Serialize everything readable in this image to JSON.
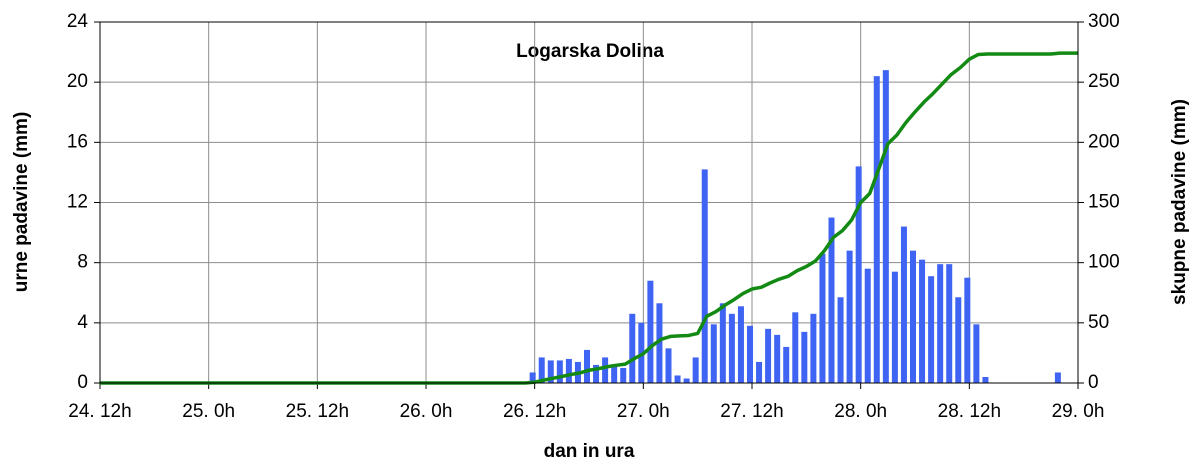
{
  "chart_data": {
    "type": "bar",
    "title": "Logarska Dolina",
    "xlabel": "dan in ura",
    "ylabel": "urne padavine (mm)",
    "y2label": "skupne padavine (mm)",
    "categories": [
      "24. 12h",
      null,
      null,
      null,
      null,
      null,
      null,
      null,
      null,
      null,
      null,
      null,
      "25. 0h",
      null,
      null,
      null,
      null,
      null,
      null,
      null,
      null,
      null,
      null,
      null,
      "25. 12h",
      null,
      null,
      null,
      null,
      null,
      null,
      null,
      null,
      null,
      null,
      null,
      "26. 0h",
      null,
      null,
      null,
      null,
      null,
      null,
      null,
      null,
      null,
      null,
      null,
      "26. 12h",
      null,
      null,
      null,
      null,
      null,
      null,
      null,
      null,
      null,
      null,
      null,
      "27. 0h",
      null,
      null,
      null,
      null,
      null,
      null,
      null,
      null,
      null,
      null,
      null,
      "27. 12h",
      null,
      null,
      null,
      null,
      null,
      null,
      null,
      null,
      null,
      null,
      null,
      "28. 0h",
      null,
      null,
      null,
      null,
      null,
      null,
      null,
      null,
      null,
      null,
      null,
      "28. 12h",
      null,
      null,
      null,
      null,
      null,
      null,
      null,
      null,
      null,
      null,
      null,
      "29. 0h"
    ],
    "series": [
      {
        "color": "#3f63f2",
        "values": [
          0,
          0,
          0,
          0,
          0,
          0,
          0,
          0,
          0,
          0,
          0,
          0,
          0,
          0,
          0,
          0,
          0,
          0,
          0,
          0,
          0,
          0,
          0,
          0,
          0,
          0,
          0,
          0,
          0,
          0,
          0,
          0,
          0,
          0,
          0,
          0,
          0,
          0,
          0,
          0,
          0,
          0,
          0,
          0,
          0,
          0,
          0,
          0,
          0.7,
          1.7,
          1.5,
          1.5,
          1.6,
          1.4,
          2.2,
          1.2,
          1.7,
          1.2,
          1.0,
          4.6,
          4.0,
          6.8,
          5.3,
          2.3,
          0.5,
          0.3,
          1.7,
          14.2,
          3.9,
          5.3,
          4.6,
          5.1,
          3.8,
          1.4,
          3.6,
          3.2,
          2.4,
          4.7,
          3.4,
          4.6,
          8.6,
          11.0,
          5.7,
          8.8,
          14.4,
          7.6,
          20.4,
          20.8,
          7.4,
          10.4,
          8.8,
          8.2,
          7.1,
          7.9,
          7.9,
          5.7,
          7.0,
          3.9,
          0.4,
          0,
          0,
          0,
          0,
          0,
          0,
          0,
          0.7,
          0,
          0
        ]
      },
      {
        "color": "#138a13",
        "type": "line",
        "axis": "y2",
        "values": [
          0,
          0,
          0,
          0,
          0,
          0,
          0,
          0,
          0,
          0,
          0,
          0,
          0,
          0,
          0,
          0,
          0,
          0,
          0,
          0,
          0,
          0,
          0,
          0,
          0,
          0,
          0,
          0,
          0,
          0,
          0,
          0,
          0,
          0,
          0,
          0,
          0,
          0,
          0,
          0,
          0,
          0,
          0,
          0,
          0,
          0,
          0,
          0,
          0.7,
          2.4,
          3.9,
          5.4,
          7.0,
          8.4,
          10.6,
          11.8,
          13.5,
          14.7,
          15.7,
          20.3,
          24.3,
          31.1,
          36.4,
          38.7,
          39.2,
          39.5,
          41.2,
          55.4,
          59.3,
          64.6,
          69.2,
          74.3,
          78.1,
          79.5,
          83.1,
          86.3,
          88.7,
          93.4,
          96.8,
          101.4,
          110.0,
          121.0,
          126.7,
          135.5,
          149.9,
          157.5,
          177.9,
          198.7,
          206.1,
          216.5,
          225.3,
          233.5,
          240.6,
          248.5,
          256.4,
          262.1,
          269.1,
          273.0,
          273.4,
          273.4,
          273.4,
          273.4,
          273.4,
          273.4,
          273.4,
          273.4,
          274.1,
          274.1,
          274.1
        ]
      }
    ],
    "ylim": [
      0,
      24
    ],
    "yticks": [
      0,
      4,
      8,
      12,
      16,
      20,
      24
    ],
    "y2lim": [
      0,
      300
    ],
    "y2ticks": [
      0,
      50,
      100,
      150,
      200,
      250,
      300
    ],
    "grid": true
  }
}
